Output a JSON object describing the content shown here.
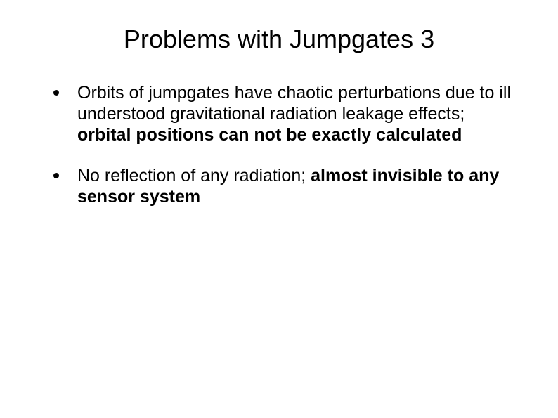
{
  "title": "Problems with Jumpgates 3",
  "bullets": [
    {
      "plain": "Orbits of jumpgates have chaotic perturbations due to ill understood gravitational radiation leakage effects; ",
      "bold": "orbital positions can not be exactly calculated"
    },
    {
      "plain": "No reflection of any radiation; ",
      "bold": "almost invisible to any sensor system"
    }
  ]
}
